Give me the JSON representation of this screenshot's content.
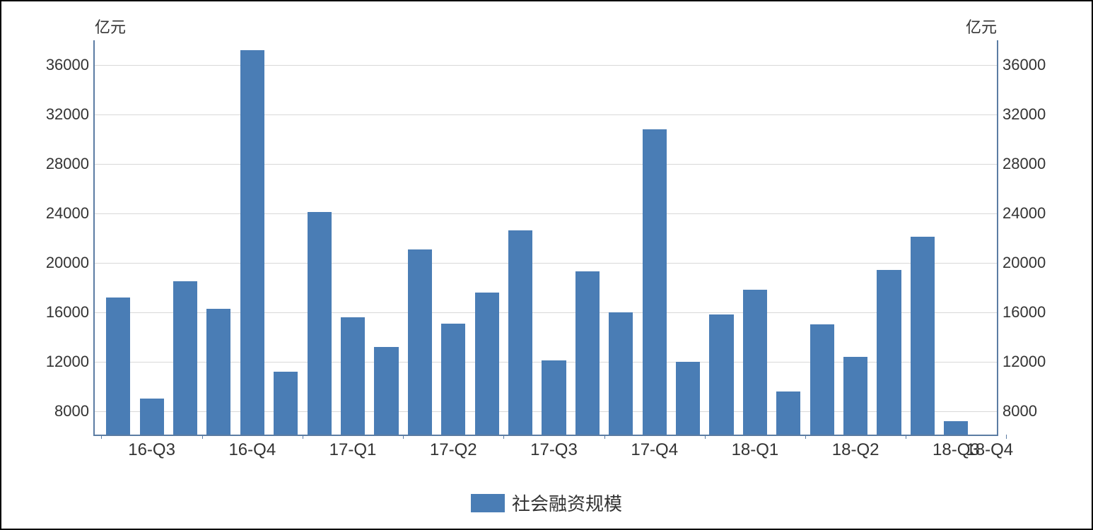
{
  "chart": {
    "type": "bar",
    "background_color": "#ffffff",
    "border_color": "#000000",
    "axis_color": "#5b7ca3",
    "grid_color": "#d9d9d9",
    "bar_color": "#4a7db5",
    "tick_fontsize": 22,
    "xlabel_fontsize": 24,
    "legend_fontsize": 26,
    "y_unit_left": "亿元",
    "y_unit_right": "亿元",
    "y_min": 6000,
    "y_max": 38000,
    "y_ticks": [
      8000,
      12000,
      16000,
      20000,
      24000,
      28000,
      32000,
      36000
    ],
    "y_ticks_right": [
      8000,
      12000,
      16000,
      20000,
      24000,
      28000,
      32000,
      36000
    ],
    "x_group_labels": [
      "16-Q3",
      "16-Q4",
      "17-Q1",
      "17-Q2",
      "17-Q3",
      "17-Q4",
      "18-Q1",
      "18-Q2",
      "18-Q3",
      "18-Q4"
    ],
    "bars_per_group_nominal": 3,
    "values": [
      17100,
      8900,
      18400,
      16200,
      37100,
      11100,
      24000,
      15500,
      13100,
      21000,
      15000,
      17500,
      22500,
      12000,
      19200,
      15900,
      30700,
      11900,
      15700,
      17700,
      9500,
      14900,
      12300,
      19300,
      22000,
      7100
    ],
    "bar_count": 26,
    "bar_width_ratio": 0.72,
    "legend_label": "社会融资规模"
  }
}
